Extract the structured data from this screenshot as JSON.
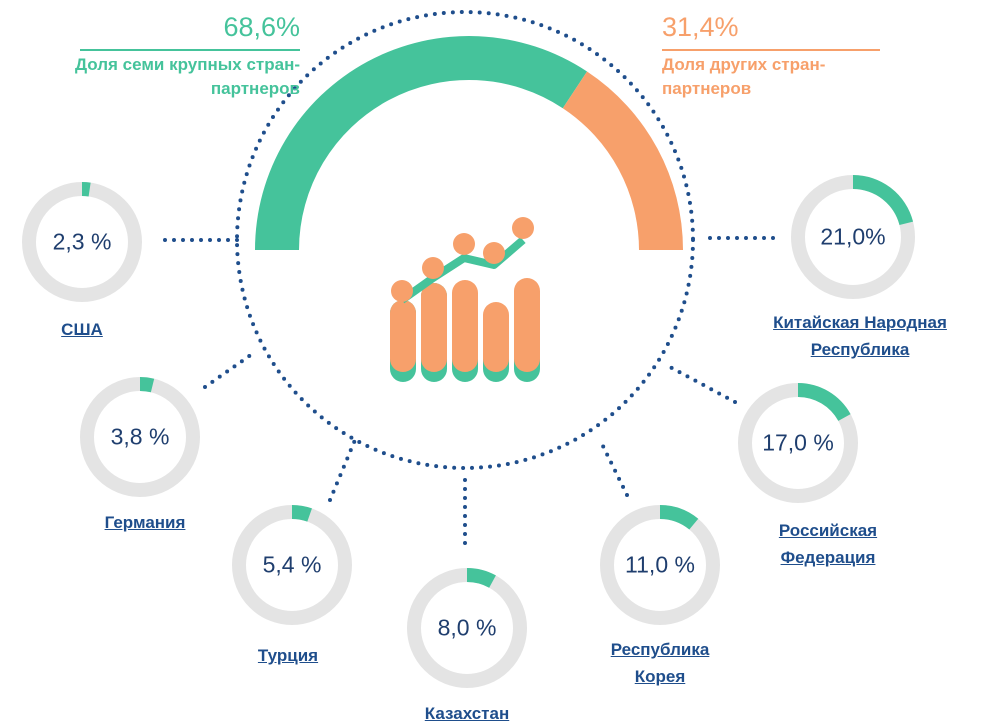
{
  "chart_data": [
    {
      "type": "semi-donut",
      "categories": [
        "Доля семи крупных стран-партнеров",
        "Доля других стран-партнеров"
      ],
      "values": [
        68.6,
        31.4
      ],
      "value_labels": [
        "68,6%",
        "31,4%"
      ],
      "colors": [
        "#45c39b",
        "#f7a06b"
      ]
    },
    {
      "type": "donut",
      "categories": [
        "США",
        "Германия",
        "Турция",
        "Казахстан",
        "Республика Корея",
        "Российская Федерация",
        "Китайская Народная Республика"
      ],
      "values": [
        2.3,
        3.8,
        5.4,
        8.0,
        11.0,
        17.0,
        21.0
      ],
      "value_labels": [
        "2,3 %",
        "3,8 %",
        "5,4 %",
        "8,0 %",
        "11,0 %",
        "17,0 %",
        "21,0%"
      ],
      "color": "#45c39b"
    }
  ]
}
